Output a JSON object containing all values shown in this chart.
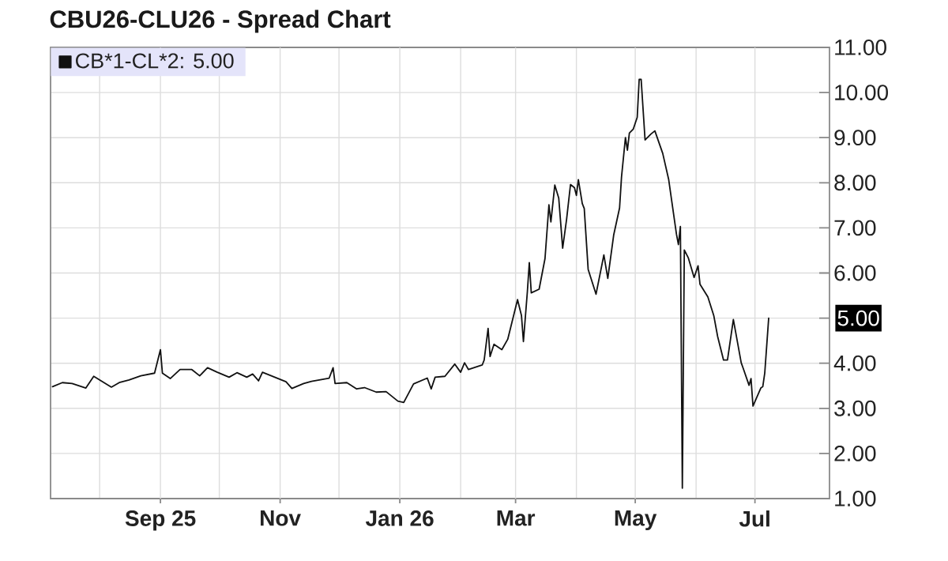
{
  "chart_data": {
    "type": "line",
    "title": "CBU26-CLU26 - Spread Chart",
    "x": [
      "2025-07-08",
      "2025-07-13",
      "2025-07-18",
      "2025-07-25",
      "2025-07-29",
      "2025-08-07",
      "2025-08-11",
      "2025-08-16",
      "2025-08-22",
      "2025-08-29",
      "2025-09-01",
      "2025-09-02",
      "2025-09-06",
      "2025-09-11",
      "2025-09-17",
      "2025-09-21",
      "2025-09-25",
      "2025-09-30",
      "2025-10-06",
      "2025-10-10",
      "2025-10-15",
      "2025-10-18",
      "2025-10-21",
      "2025-10-23",
      "2025-10-31",
      "2025-11-04",
      "2025-11-07",
      "2025-11-13",
      "2025-11-17",
      "2025-11-26",
      "2025-11-28",
      "2025-11-29",
      "2025-12-05",
      "2025-12-10",
      "2025-12-14",
      "2025-12-20",
      "2025-12-25",
      "2025-12-31",
      "2026-01-03",
      "2026-01-08",
      "2026-01-15",
      "2026-01-17",
      "2026-01-19",
      "2026-01-24",
      "2026-01-29",
      "2026-02-01",
      "2026-02-03",
      "2026-02-05",
      "2026-02-12",
      "2026-02-13",
      "2026-02-15",
      "2026-02-16",
      "2026-02-18",
      "2026-02-22",
      "2026-02-25",
      "2026-03-02",
      "2026-03-04",
      "2026-03-05",
      "2026-03-07",
      "2026-03-08",
      "2026-03-09",
      "2026-03-13",
      "2026-03-16",
      "2026-03-18",
      "2026-03-19",
      "2026-03-21",
      "2026-03-23",
      "2026-03-25",
      "2026-03-27",
      "2026-03-29",
      "2026-03-31",
      "2026-04-01",
      "2026-04-02",
      "2026-04-04",
      "2026-04-05",
      "2026-04-07",
      "2026-04-11",
      "2026-04-15",
      "2026-04-17",
      "2026-04-20",
      "2026-04-23",
      "2026-04-24",
      "2026-04-26",
      "2026-04-27",
      "2026-04-28",
      "2026-04-30",
      "2026-05-02",
      "2026-05-03",
      "2026-05-04",
      "2026-05-06",
      "2026-05-09",
      "2026-05-11",
      "2026-05-15",
      "2026-05-18",
      "2026-05-22",
      "2026-05-23",
      "2026-05-24",
      "2026-05-25",
      "2026-05-26",
      "2026-05-28",
      "2026-05-31",
      "2026-06-02",
      "2026-06-03",
      "2026-06-07",
      "2026-06-10",
      "2026-06-12",
      "2026-06-15",
      "2026-06-17",
      "2026-06-20",
      "2026-06-24",
      "2026-06-25",
      "2026-06-28",
      "2026-06-29",
      "2026-06-30",
      "2026-07-04",
      "2026-07-05",
      "2026-07-06",
      "2026-07-08"
    ],
    "series": [
      {
        "name": "CB*1-CL*2: 5.00",
        "color": "#111111",
        "values": [
          3.48,
          3.57,
          3.55,
          3.45,
          3.71,
          3.47,
          3.57,
          3.63,
          3.72,
          3.78,
          4.3,
          3.78,
          3.66,
          3.86,
          3.86,
          3.72,
          3.9,
          3.8,
          3.69,
          3.79,
          3.69,
          3.76,
          3.61,
          3.8,
          3.66,
          3.59,
          3.44,
          3.55,
          3.6,
          3.67,
          3.9,
          3.55,
          3.57,
          3.43,
          3.46,
          3.36,
          3.37,
          3.16,
          3.13,
          3.54,
          3.67,
          3.43,
          3.69,
          3.71,
          3.98,
          3.8,
          4.01,
          3.86,
          3.96,
          4.07,
          4.77,
          4.15,
          4.42,
          4.3,
          4.53,
          5.41,
          5.06,
          4.48,
          5.58,
          6.23,
          5.56,
          5.64,
          6.32,
          7.51,
          7.13,
          7.95,
          7.66,
          6.55,
          7.19,
          7.96,
          7.89,
          7.72,
          8.07,
          7.54,
          7.43,
          6.08,
          5.53,
          6.4,
          5.88,
          6.84,
          7.44,
          8.13,
          9.0,
          8.72,
          9.1,
          9.19,
          9.45,
          10.29,
          10.29,
          8.95,
          9.08,
          9.15,
          8.65,
          8.08,
          6.86,
          6.63,
          7.03,
          1.23,
          6.51,
          6.34,
          5.9,
          6.16,
          5.75,
          5.47,
          5.06,
          4.59,
          4.07,
          4.07,
          4.97,
          4.01,
          3.89,
          3.51,
          3.66,
          3.05,
          3.45,
          3.48,
          3.78,
          5.0
        ]
      }
    ],
    "xlim": [
      "2025-07-07",
      "2026-08-08"
    ],
    "xticks": [
      {
        "value": "2025-08-01",
        "label": null
      },
      {
        "value": "2025-09-01",
        "label": "Sep 25"
      },
      {
        "value": "2025-10-01",
        "label": null
      },
      {
        "value": "2025-11-01",
        "label": "Nov"
      },
      {
        "value": "2025-12-01",
        "label": null
      },
      {
        "value": "2026-01-01",
        "label": "Jan 26"
      },
      {
        "value": "2026-02-01",
        "label": null
      },
      {
        "value": "2026-03-01",
        "label": "Mar"
      },
      {
        "value": "2026-04-01",
        "label": null
      },
      {
        "value": "2026-05-01",
        "label": "May"
      },
      {
        "value": "2026-06-01",
        "label": null
      },
      {
        "value": "2026-07-01",
        "label": "Jul"
      }
    ],
    "ylim": [
      1,
      11
    ],
    "yticks": [
      {
        "value": 1,
        "label": "1.00"
      },
      {
        "value": 2,
        "label": "2.00"
      },
      {
        "value": 3,
        "label": "3.00"
      },
      {
        "value": 4,
        "label": "4.00"
      },
      {
        "value": 5,
        "label": null
      },
      {
        "value": 6,
        "label": "6.00"
      },
      {
        "value": 7,
        "label": "7.00"
      },
      {
        "value": 8,
        "label": "8.00"
      },
      {
        "value": 9,
        "label": "9.00"
      },
      {
        "value": 10,
        "label": "10.00"
      },
      {
        "value": 11,
        "label": "11.00"
      }
    ],
    "grid": true,
    "legend": "top left",
    "annotations": [
      "5.00"
    ]
  }
}
